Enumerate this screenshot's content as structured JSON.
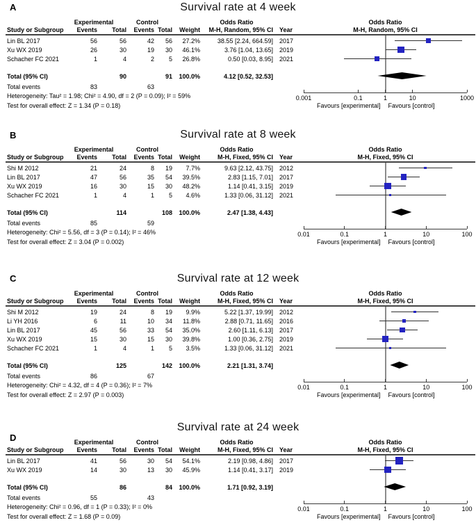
{
  "figure_colors": {
    "marker": "#2323c1",
    "diamond": "#000000",
    "ci_line": "#303030",
    "axis": "#3a3a3a",
    "center_line": "#8c8c8c",
    "header_line": "#444444",
    "background": "#ffffff"
  },
  "column_headers": {
    "group_experimental": "Experimental",
    "group_control": "Control",
    "group_odds_ratio": "Odds Ratio",
    "study": "Study or Subgroup",
    "events": "Events",
    "total": "Total",
    "weight": "Weight",
    "year": "Year"
  },
  "chart_data": [
    {
      "type": "forest",
      "panel_letter": "A",
      "title": "Survival rate at 4 week",
      "effect_header": "M-H, Random, 95% CI",
      "axis": {
        "scale": "log",
        "min": 0.001,
        "max": 1000,
        "ticks": [
          "0.001",
          "0.1",
          "1",
          "10",
          "1000"
        ]
      },
      "favours_left": "Favours [experimental]",
      "favours_right": "Favours [control]",
      "studies": [
        {
          "study": "Lin BL 2017",
          "exp_events": "56",
          "exp_total": "56",
          "ctrl_events": "42",
          "ctrl_total": "56",
          "weight": "27.2%",
          "or_ci": "38.55 [2.24, 664.59]",
          "year": "2017",
          "or": 38.55,
          "ci_low": 2.24,
          "ci_high": 664.59,
          "weight_pct": 27.2
        },
        {
          "study": "Xu WX 2019",
          "exp_events": "26",
          "exp_total": "30",
          "ctrl_events": "19",
          "ctrl_total": "30",
          "weight": "46.1%",
          "or_ci": "3.76 [1.04, 13.65]",
          "year": "2019",
          "or": 3.76,
          "ci_low": 1.04,
          "ci_high": 13.65,
          "weight_pct": 46.1
        },
        {
          "study": "Schacher FC 2021",
          "exp_events": "1",
          "exp_total": "4",
          "ctrl_events": "2",
          "ctrl_total": "5",
          "weight": "26.8%",
          "or_ci": "0.50 [0.03, 8.95]",
          "year": "2021",
          "or": 0.5,
          "ci_low": 0.03,
          "ci_high": 8.95,
          "weight_pct": 26.8
        }
      ],
      "total_row": {
        "label": "Total (95% CI)",
        "exp_total": "90",
        "ctrl_total": "91",
        "weight": "100.0%",
        "or_ci": "4.12 [0.52, 32.53]",
        "or": 4.12,
        "ci_low": 0.52,
        "ci_high": 32.53
      },
      "total_events": {
        "label": "Total events",
        "exp": "83",
        "ctrl": "63"
      },
      "heterogeneity": "Heterogeneity: Tau² = 1.98; Chi² = 4.90, df = 2 (P = 0.09); I² = 59%",
      "overall_effect": "Test for overall effect: Z = 1.34 (P = 0.18)"
    },
    {
      "type": "forest",
      "panel_letter": "B",
      "title": "Survival rate at 8 week",
      "effect_header": "M-H, Fixed, 95% CI",
      "axis": {
        "scale": "log",
        "min": 0.01,
        "max": 100,
        "ticks": [
          "0.01",
          "0.1",
          "1",
          "10",
          "100"
        ]
      },
      "favours_left": "Favours [experimental]",
      "favours_right": "Favours [control]",
      "studies": [
        {
          "study": "Shi M 2012",
          "exp_events": "21",
          "exp_total": "24",
          "ctrl_events": "8",
          "ctrl_total": "19",
          "weight": "7.7%",
          "or_ci": "9.63 [2.12, 43.75]",
          "year": "2012",
          "or": 9.63,
          "ci_low": 2.12,
          "ci_high": 43.75,
          "weight_pct": 7.7
        },
        {
          "study": "Lin BL 2017",
          "exp_events": "47",
          "exp_total": "56",
          "ctrl_events": "35",
          "ctrl_total": "54",
          "weight": "39.5%",
          "or_ci": "2.83 [1.15, 7.01]",
          "year": "2017",
          "or": 2.83,
          "ci_low": 1.15,
          "ci_high": 7.01,
          "weight_pct": 39.5
        },
        {
          "study": "Xu WX 2019",
          "exp_events": "16",
          "exp_total": "30",
          "ctrl_events": "15",
          "ctrl_total": "30",
          "weight": "48.2%",
          "or_ci": "1.14 [0.41, 3.15]",
          "year": "2019",
          "or": 1.14,
          "ci_low": 0.41,
          "ci_high": 3.15,
          "weight_pct": 48.2
        },
        {
          "study": "Schacher FC 2021",
          "exp_events": "1",
          "exp_total": "4",
          "ctrl_events": "1",
          "ctrl_total": "5",
          "weight": "4.6%",
          "or_ci": "1.33 [0.06, 31.12]",
          "year": "2021",
          "or": 1.33,
          "ci_low": 0.06,
          "ci_high": 31.12,
          "weight_pct": 4.6
        }
      ],
      "total_row": {
        "label": "Total (95% CI)",
        "exp_total": "114",
        "ctrl_total": "108",
        "weight": "100.0%",
        "or_ci": "2.47 [1.38, 4.43]",
        "or": 2.47,
        "ci_low": 1.38,
        "ci_high": 4.43
      },
      "total_events": {
        "label": "Total events",
        "exp": "85",
        "ctrl": "59"
      },
      "heterogeneity": "Heterogeneity: Chi² = 5.56, df = 3 (P = 0.14); I² = 46%",
      "overall_effect": "Test for overall effect: Z = 3.04 (P = 0.002)"
    },
    {
      "type": "forest",
      "panel_letter": "C",
      "title": "Survival rate at 12 week",
      "effect_header": "M-H, Fixed, 95% CI",
      "axis": {
        "scale": "log",
        "min": 0.01,
        "max": 100,
        "ticks": [
          "0.01",
          "0.1",
          "1",
          "10",
          "100"
        ]
      },
      "favours_left": "Favours [experimental]",
      "favours_right": "Favours [control]",
      "studies": [
        {
          "study": "Shi M 2012",
          "exp_events": "19",
          "exp_total": "24",
          "ctrl_events": "8",
          "ctrl_total": "19",
          "weight": "9.9%",
          "or_ci": "5.22 [1.37, 19.99]",
          "year": "2012",
          "or": 5.22,
          "ci_low": 1.37,
          "ci_high": 19.99,
          "weight_pct": 9.9
        },
        {
          "study": "Li YH 2016",
          "exp_events": "6",
          "exp_total": "11",
          "ctrl_events": "10",
          "ctrl_total": "34",
          "weight": "11.8%",
          "or_ci": "2.88 [0.71, 11.65]",
          "year": "2016",
          "or": 2.88,
          "ci_low": 0.71,
          "ci_high": 11.65,
          "weight_pct": 11.8
        },
        {
          "study": "Lin BL 2017",
          "exp_events": "45",
          "exp_total": "56",
          "ctrl_events": "33",
          "ctrl_total": "54",
          "weight": "35.0%",
          "or_ci": "2.60 [1.11, 6.13]",
          "year": "2017",
          "or": 2.6,
          "ci_low": 1.11,
          "ci_high": 6.13,
          "weight_pct": 35.0
        },
        {
          "study": "Xu WX 2019",
          "exp_events": "15",
          "exp_total": "30",
          "ctrl_events": "15",
          "ctrl_total": "30",
          "weight": "39.8%",
          "or_ci": "1.00 [0.36, 2.75]",
          "year": "2019",
          "or": 1.0,
          "ci_low": 0.36,
          "ci_high": 2.75,
          "weight_pct": 39.8
        },
        {
          "study": "Schacher FC 2021",
          "exp_events": "1",
          "exp_total": "4",
          "ctrl_events": "1",
          "ctrl_total": "5",
          "weight": "3.5%",
          "or_ci": "1.33 [0.06, 31.12]",
          "year": "2021",
          "or": 1.33,
          "ci_low": 0.06,
          "ci_high": 31.12,
          "weight_pct": 3.5
        }
      ],
      "total_row": {
        "label": "Total (95% CI)",
        "exp_total": "125",
        "ctrl_total": "142",
        "weight": "100.0%",
        "or_ci": "2.21 [1.31, 3.74]",
        "or": 2.21,
        "ci_low": 1.31,
        "ci_high": 3.74
      },
      "total_events": {
        "label": "Total events",
        "exp": "86",
        "ctrl": "67"
      },
      "heterogeneity": "Heterogeneity: Chi² = 4.32, df = 4 (P = 0.36); I² = 7%",
      "overall_effect": "Test for overall effect: Z = 2.97 (P = 0.003)"
    },
    {
      "type": "forest",
      "panel_letter": "D",
      "title": "Survival rate at 24 week",
      "effect_header": "M-H, Fixed, 95% CI",
      "axis": {
        "scale": "log",
        "min": 0.01,
        "max": 100,
        "ticks": [
          "0.01",
          "0.1",
          "1",
          "10",
          "100"
        ]
      },
      "favours_left": "Favours [experimental]",
      "favours_right": "Favours [control]",
      "studies": [
        {
          "study": "Lin BL 2017",
          "exp_events": "41",
          "exp_total": "56",
          "ctrl_events": "30",
          "ctrl_total": "54",
          "weight": "54.1%",
          "or_ci": "2.19 [0.98, 4.86]",
          "year": "2017",
          "or": 2.19,
          "ci_low": 0.98,
          "ci_high": 4.86,
          "weight_pct": 54.1
        },
        {
          "study": "Xu WX 2019",
          "exp_events": "14",
          "exp_total": "30",
          "ctrl_events": "13",
          "ctrl_total": "30",
          "weight": "45.9%",
          "or_ci": "1.14 [0.41, 3.17]",
          "year": "2019",
          "or": 1.14,
          "ci_low": 0.41,
          "ci_high": 3.17,
          "weight_pct": 45.9
        }
      ],
      "total_row": {
        "label": "Total (95% CI)",
        "exp_total": "86",
        "ctrl_total": "84",
        "weight": "100.0%",
        "or_ci": "1.71 [0.92, 3.19]",
        "or": 1.71,
        "ci_low": 0.92,
        "ci_high": 3.19
      },
      "total_events": {
        "label": "Total events",
        "exp": "55",
        "ctrl": "43"
      },
      "heterogeneity": "Heterogeneity: Chi² = 0.96, df = 1 (P = 0.33); I² = 0%",
      "overall_effect": "Test for overall effect: Z = 1.68 (P = 0.09)"
    }
  ]
}
